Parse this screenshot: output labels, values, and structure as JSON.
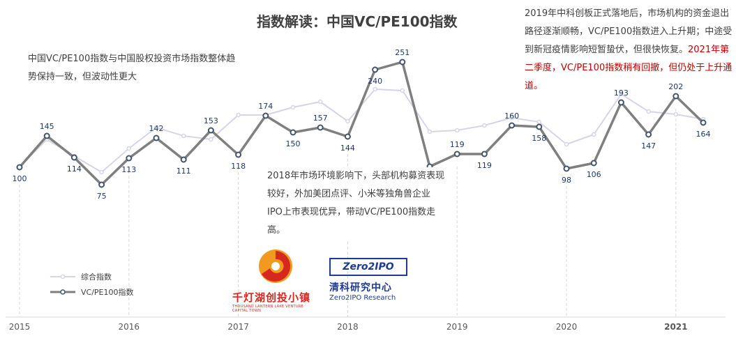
{
  "header": {
    "title": "指数解读：中国VC/PE100指数"
  },
  "notes": {
    "left": "中国VC/PE100指数与中国股权投资市场指数整体趋势保持一致，但波动性更大",
    "middle": "2018年市场环境影响下，头部机构募资表现较好，外加美团点评、小米等独角兽企业IPO上市表现优异，带动VC/PE100指数走高。",
    "right_black": "2019年中科创板正式落地后，市场机构的资金退出路径逐渐顺畅，VC/PE100指数进入上升期；中途受到新冠疫情影响短暂蛰伏，但很快恢复。",
    "right_red": "2021年第二季度，VC/PE100指数稍有回撤，但仍处于上升通道。"
  },
  "logos": {
    "qdh_name": "千灯湖创投小镇",
    "qdh_sub": "THOUSAND LANTERN LAKE VENTURE CAPITAL TOWN",
    "zero2ipo_mark": "Zero2IPO",
    "zero2ipo_cn": "清科研究中心",
    "zero2ipo_en": "Zero2IPO Research"
  },
  "colors": {
    "composite": "#d5d5e6",
    "vcpe": "#7f7f7f",
    "label": "#1f3864",
    "red_text": "#c00000"
  },
  "chart_data": {
    "type": "line",
    "x": [
      "2015Q1",
      "2015Q2",
      "2015Q3",
      "2015Q4",
      "2016Q1",
      "2016Q2",
      "2016Q3",
      "2016Q4",
      "2017Q1",
      "2017Q2",
      "2017Q3",
      "2017Q4",
      "2018Q1",
      "2018Q2",
      "2018Q3",
      "2018Q4",
      "2019Q1",
      "2019Q2",
      "2019Q3",
      "2019Q4",
      "2020Q1",
      "2020Q2",
      "2020Q3",
      "2020Q4",
      "2021Q1",
      "2021Q2"
    ],
    "year_ticks": [
      "2015",
      "2016",
      "2017",
      "2018",
      "2019",
      "2020",
      "2021"
    ],
    "series": [
      {
        "name": "综合指数",
        "values": [
          100,
          140,
          116,
          93,
          127,
          157,
          145,
          140,
          175,
          175,
          186,
          194,
          166,
          212,
          210,
          151,
          153,
          160,
          171,
          165,
          133,
          147,
          205,
          180,
          176,
          169
        ],
        "show_labels": false
      },
      {
        "name": "VC/PE100指数",
        "values": [
          100,
          145,
          114,
          75,
          113,
          142,
          111,
          153,
          118,
          174,
          150,
          157,
          144,
          240,
          251,
          101,
          119,
          119,
          160,
          158,
          98,
          106,
          193,
          147,
          202,
          164
        ],
        "show_labels": true
      }
    ],
    "ylim": [
      0,
      300
    ],
    "grid": false,
    "legend_position": "bottom-left"
  }
}
